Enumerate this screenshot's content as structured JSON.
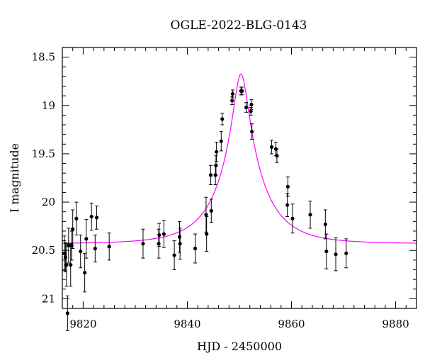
{
  "chart_data": {
    "type": "scatter",
    "title": "OGLE-2022-BLG-0143",
    "xlabel": "HJD - 2450000",
    "ylabel": "I magnitude",
    "xlim": [
      9816,
      9884
    ],
    "ylim": [
      21.1,
      18.4
    ],
    "y_inverted": true,
    "xticks": [
      9820,
      9840,
      9860,
      9880
    ],
    "xtick_labels": [
      "9820",
      "9840",
      "9860",
      "9880"
    ],
    "yticks": [
      18.5,
      19,
      19.5,
      20,
      20.5,
      21
    ],
    "ytick_labels": [
      "18.5",
      "19",
      "19.5",
      "20",
      "20.5",
      "21"
    ],
    "grid": false,
    "legend": "none",
    "colors": {
      "points": "#000000",
      "model": "#ff00ff",
      "frame": "#000000"
    },
    "series": [
      {
        "kind": "points_with_errorbars",
        "x": [
          9816.4,
          9816.6,
          9816.8,
          9817.0,
          9817.2,
          9817.6,
          9817.8,
          9818.0,
          9818.7,
          9819.5,
          9820.3,
          9820.6,
          9821.6,
          9822.3,
          9822.6,
          9825.0,
          9831.5,
          9834.5,
          9834.6,
          9835.5,
          9837.5,
          9838.5,
          9838.6,
          9841.5,
          9843.6,
          9843.7,
          9844.5,
          9844.6,
          9845.4,
          9845.5,
          9845.6,
          9846.5,
          9846.7,
          9848.6,
          9848.7,
          9850.3,
          9850.5,
          9851.3,
          9852.2,
          9852.3,
          9852.4,
          9856.2,
          9857.0,
          9857.2,
          9859.2,
          9859.3,
          9860.2,
          9863.6,
          9866.5,
          9866.7,
          9868.5,
          9870.5
        ],
        "y": [
          20.53,
          20.57,
          20.65,
          21.15,
          20.45,
          20.65,
          20.45,
          20.28,
          20.17,
          20.51,
          20.73,
          20.38,
          20.15,
          20.48,
          20.16,
          20.46,
          20.43,
          20.43,
          20.34,
          20.33,
          20.55,
          20.36,
          20.43,
          20.48,
          20.13,
          20.33,
          19.72,
          20.09,
          19.72,
          19.62,
          19.48,
          19.37,
          19.14,
          18.95,
          18.88,
          18.85,
          18.85,
          19.02,
          19.06,
          18.99,
          19.27,
          19.43,
          19.45,
          19.52,
          20.03,
          19.84,
          20.17,
          20.13,
          20.23,
          20.51,
          20.54,
          20.53
        ],
        "yerr": [
          0.18,
          0.15,
          0.22,
          0.18,
          0.18,
          0.22,
          0.15,
          0.2,
          0.17,
          0.17,
          0.2,
          0.2,
          0.14,
          0.14,
          0.12,
          0.14,
          0.15,
          0.15,
          0.12,
          0.14,
          0.15,
          0.16,
          0.16,
          0.15,
          0.18,
          0.18,
          0.1,
          0.12,
          0.1,
          0.1,
          0.1,
          0.1,
          0.06,
          0.04,
          0.04,
          0.04,
          0.04,
          0.05,
          0.04,
          0.05,
          0.08,
          0.07,
          0.07,
          0.07,
          0.12,
          0.1,
          0.15,
          0.14,
          0.15,
          0.18,
          0.17,
          0.15
        ]
      },
      {
        "kind": "model_curve",
        "t0": 9850.3,
        "u0": 0.16,
        "tE": 8.5,
        "fs": 0.76,
        "mag_base": 20.43
      }
    ]
  }
}
